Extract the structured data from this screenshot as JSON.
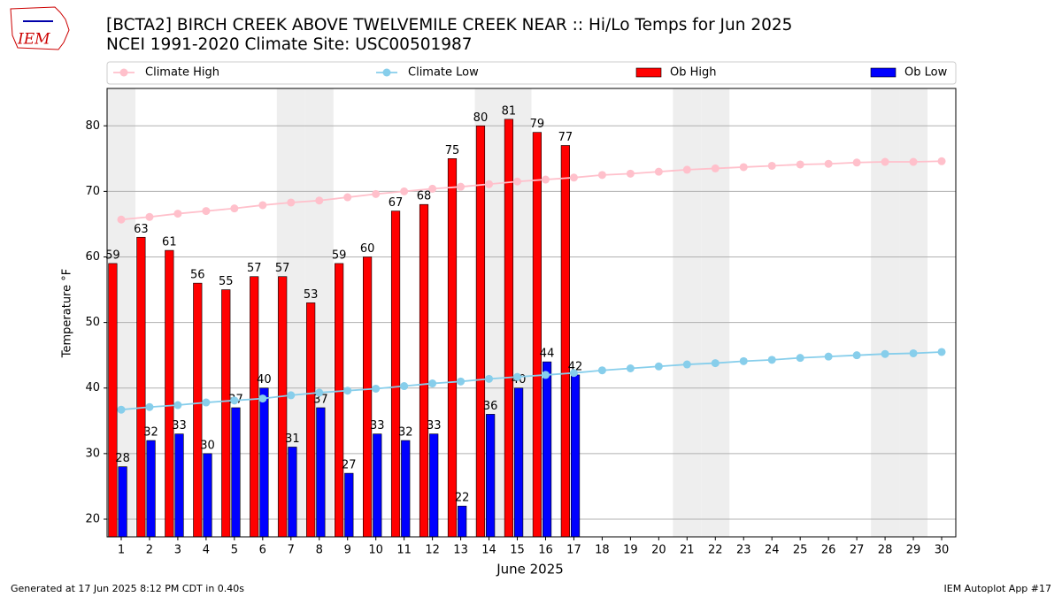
{
  "chart_data": {
    "type": "bar",
    "title": "[BCTA2] BIRCH CREEK ABOVE TWELVEMILE CREEK NEAR :: Hi/Lo Temps for Jun 2025",
    "subtitle": "NCEI 1991-2020 Climate Site: USC00501987",
    "logo_text": "IEM",
    "xlabel": "June 2025",
    "ylabel": "Temperature °F",
    "footer_left": "Generated at 17 Jun 2025 8:12 PM CDT in 0.40s",
    "footer_right": "IEM Autoplot App #17",
    "x": [
      1,
      2,
      3,
      4,
      5,
      6,
      7,
      8,
      9,
      10,
      11,
      12,
      13,
      14,
      15,
      16,
      17,
      18,
      19,
      20,
      21,
      22,
      23,
      24,
      25,
      26,
      27,
      28,
      29,
      30
    ],
    "xlim": [
      0.5,
      30.5
    ],
    "xticks": [
      1,
      2,
      3,
      4,
      5,
      6,
      7,
      8,
      9,
      10,
      11,
      12,
      13,
      14,
      15,
      16,
      17,
      18,
      19,
      20,
      21,
      22,
      23,
      24,
      25,
      26,
      27,
      28,
      29,
      30
    ],
    "ylim": [
      17.3,
      85.7
    ],
    "yticks": [
      20,
      30,
      40,
      50,
      60,
      70,
      80
    ],
    "grid": true,
    "shaded_days": [
      1,
      7,
      8,
      14,
      15,
      21,
      22,
      28,
      29
    ],
    "series": [
      {
        "name": "Climate High",
        "type": "line",
        "color": "#ffc0cb",
        "values": [
          65.7,
          66.1,
          66.6,
          67.0,
          67.4,
          67.9,
          68.3,
          68.6,
          69.1,
          69.6,
          70.0,
          70.4,
          70.7,
          71.1,
          71.5,
          71.8,
          72.1,
          72.5,
          72.7,
          73.0,
          73.3,
          73.5,
          73.7,
          73.9,
          74.1,
          74.2,
          74.4,
          74.5,
          74.5,
          74.6
        ]
      },
      {
        "name": "Climate Low",
        "type": "line",
        "color": "#87ceeb",
        "values": [
          36.7,
          37.1,
          37.4,
          37.8,
          38.1,
          38.4,
          38.9,
          39.3,
          39.6,
          39.9,
          40.3,
          40.7,
          41.0,
          41.4,
          41.7,
          42.0,
          42.3,
          42.7,
          43.0,
          43.3,
          43.6,
          43.8,
          44.1,
          44.3,
          44.6,
          44.8,
          45.0,
          45.2,
          45.3,
          45.5
        ]
      },
      {
        "name": "Ob High",
        "type": "bar",
        "color": "#ff0000",
        "values": [
          59,
          63,
          61,
          56,
          55,
          57,
          57,
          53,
          59,
          60,
          67,
          68,
          75,
          80,
          81,
          79,
          77,
          null,
          null,
          null,
          null,
          null,
          null,
          null,
          null,
          null,
          null,
          null,
          null,
          null
        ]
      },
      {
        "name": "Ob Low",
        "type": "bar",
        "color": "#0000ff",
        "values": [
          28,
          32,
          33,
          30,
          37,
          40,
          31,
          37,
          27,
          33,
          32,
          33,
          22,
          36,
          40,
          44,
          42,
          null,
          null,
          null,
          null,
          null,
          null,
          null,
          null,
          null,
          null,
          null,
          null,
          null
        ]
      }
    ]
  }
}
